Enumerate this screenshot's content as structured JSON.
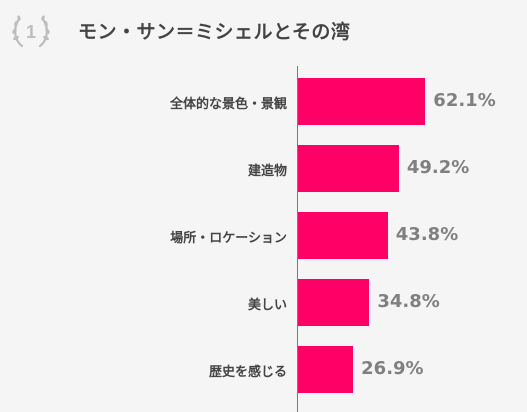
{
  "header": {
    "rank": "1",
    "title": "モン・サン＝ミシェルとその湾"
  },
  "colors": {
    "bar": "#ff0066",
    "badge": "#bdbdbd"
  },
  "chart_data": {
    "type": "bar",
    "orientation": "horizontal",
    "categories": [
      "全体的な景色・景観",
      "建造物",
      "場所・ロケーション",
      "美しい",
      "歴史を感じる"
    ],
    "values": [
      62.1,
      49.2,
      43.8,
      34.8,
      26.9
    ],
    "value_labels": [
      "62.1%",
      "49.2%",
      "43.8%",
      "34.8%",
      "26.9%"
    ],
    "unit": "%",
    "xlim": [
      0,
      100
    ],
    "grid": false
  }
}
